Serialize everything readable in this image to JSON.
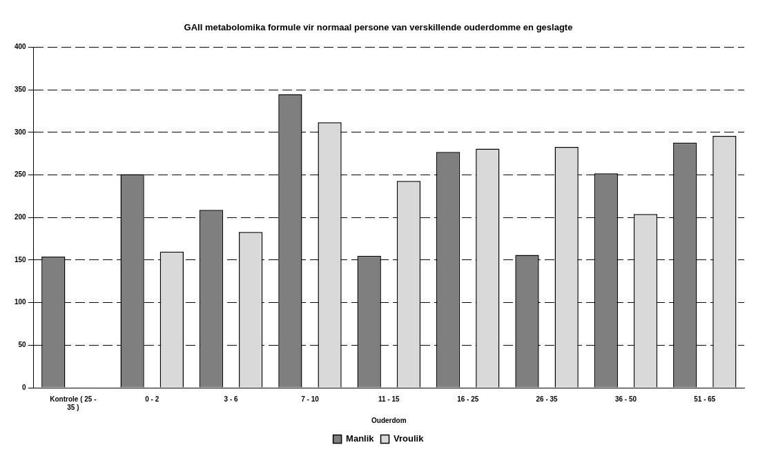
{
  "chart_data": {
    "type": "bar",
    "title": "GAII metabolomika formule vir normaal persone van verskillende ouderdomme en geslagte",
    "xlabel": "Ouderdom",
    "categories": [
      "Kontrole ( 25 - 35 )",
      "0 - 2",
      "3 - 6",
      "7 - 10",
      "11 - 15",
      "16 - 25",
      "26 - 35",
      "36 - 50",
      "51 - 65"
    ],
    "series": [
      {
        "name": "Manlik",
        "color": "#7f7f7f",
        "values": [
          154,
          251,
          209,
          345,
          155,
          277,
          156,
          252,
          288
        ]
      },
      {
        "name": "Vroulik",
        "color": "#d9d9d9",
        "values": [
          null,
          160,
          183,
          312,
          243,
          281,
          283,
          204,
          296
        ]
      }
    ],
    "ylim": [
      0,
      400
    ],
    "yticks": [
      0,
      50,
      100,
      150,
      200,
      250,
      300,
      350,
      400
    ],
    "grid": "y",
    "legend": "bottom",
    "line_style": "dashed"
  }
}
